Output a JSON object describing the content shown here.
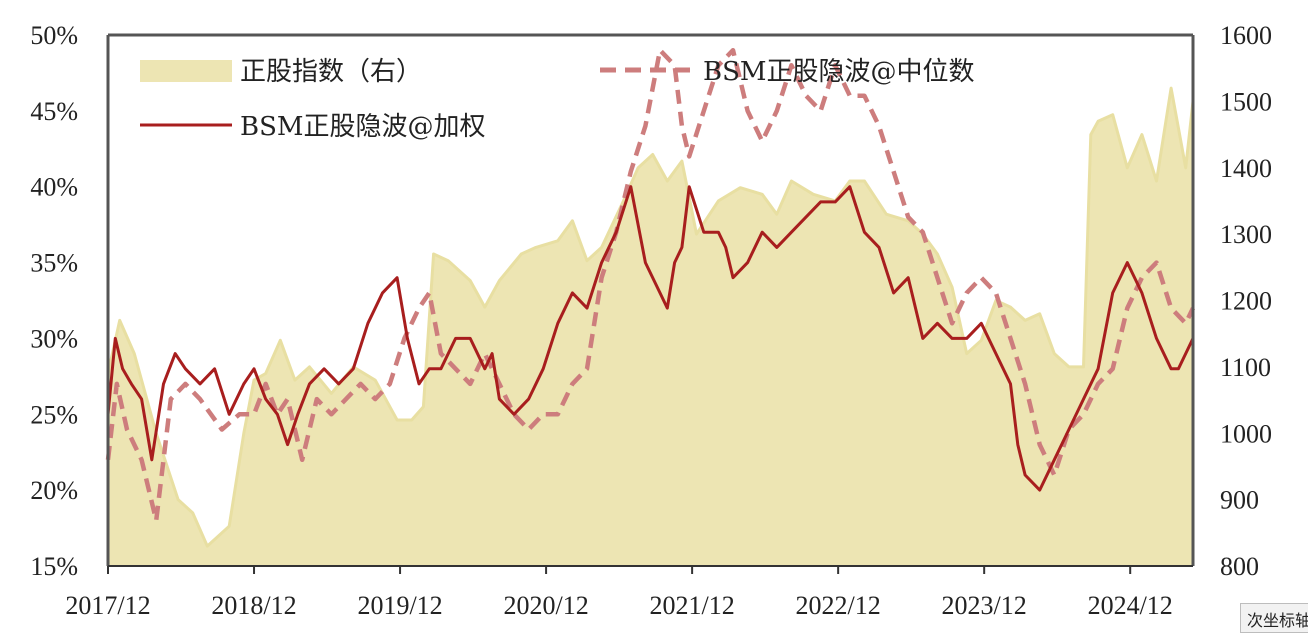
{
  "colors": {
    "index_fill": "#ede5b3",
    "index_line": "#e8dfa2",
    "weighted_line": "#a81e1e",
    "median_line": "#cd7d7d",
    "axis": "#555555"
  },
  "tooltip": "次坐标轴",
  "chart_data": {
    "type": "line",
    "title": "",
    "grid": false,
    "legend_position": "top",
    "x_ticks": [
      "2017/12",
      "2018/12",
      "2019/12",
      "2020/12",
      "2021/12",
      "2022/12",
      "2023/12",
      "2024/12"
    ],
    "x_range": [
      2017.92,
      2025.35
    ],
    "y_left": {
      "ticks": [
        "15%",
        "20%",
        "25%",
        "30%",
        "35%",
        "40%",
        "45%",
        "50%"
      ],
      "range": [
        15,
        50
      ],
      "unit": "%"
    },
    "y_right": {
      "ticks": [
        "800",
        "900",
        "1000",
        "1100",
        "1200",
        "1300",
        "1400",
        "1500",
        "1600"
      ],
      "range": [
        800,
        1600
      ]
    },
    "series": [
      {
        "name": "正股指数（右）",
        "axis": "right",
        "style": "area",
        "x": [
          2017.92,
          2018.0,
          2018.1,
          2018.25,
          2018.4,
          2018.5,
          2018.6,
          2018.75,
          2018.85,
          2018.92,
          2019.0,
          2019.1,
          2019.2,
          2019.3,
          2019.45,
          2019.6,
          2019.75,
          2019.9,
          2020.0,
          2020.08,
          2020.15,
          2020.25,
          2020.4,
          2020.5,
          2020.6,
          2020.75,
          2020.85,
          2021.0,
          2021.1,
          2021.2,
          2021.3,
          2021.45,
          2021.55,
          2021.65,
          2021.75,
          2021.85,
          2021.95,
          2022.1,
          2022.25,
          2022.4,
          2022.5,
          2022.6,
          2022.75,
          2022.9,
          2023.0,
          2023.1,
          2023.25,
          2023.4,
          2023.5,
          2023.6,
          2023.7,
          2023.8,
          2023.9,
          2024.0,
          2024.1,
          2024.2,
          2024.3,
          2024.4,
          2024.5,
          2024.6,
          2024.65,
          2024.7,
          2024.8,
          2024.9,
          2025.0,
          2025.1,
          2025.2,
          2025.3,
          2025.35
        ],
        "values": [
          1090,
          1170,
          1120,
          1000,
          900,
          880,
          830,
          860,
          1000,
          1080,
          1090,
          1140,
          1080,
          1100,
          1060,
          1100,
          1080,
          1020,
          1020,
          1040,
          1270,
          1260,
          1230,
          1190,
          1230,
          1270,
          1280,
          1290,
          1320,
          1260,
          1280,
          1350,
          1400,
          1420,
          1380,
          1410,
          1300,
          1350,
          1370,
          1360,
          1330,
          1380,
          1360,
          1350,
          1380,
          1380,
          1330,
          1320,
          1300,
          1270,
          1220,
          1120,
          1140,
          1200,
          1190,
          1170,
          1180,
          1120,
          1100,
          1100,
          1450,
          1470,
          1480,
          1400,
          1450,
          1380,
          1520,
          1400,
          1500
        ]
      },
      {
        "name": "BSM正股隐波@中位数",
        "axis": "left",
        "style": "dashed",
        "x": [
          2017.92,
          2017.98,
          2018.05,
          2018.15,
          2018.25,
          2018.35,
          2018.45,
          2018.55,
          2018.7,
          2018.82,
          2018.92,
          2019.0,
          2019.08,
          2019.15,
          2019.25,
          2019.35,
          2019.45,
          2019.55,
          2019.65,
          2019.75,
          2019.85,
          2019.95,
          2020.05,
          2020.12,
          2020.2,
          2020.3,
          2020.4,
          2020.5,
          2020.6,
          2020.7,
          2020.8,
          2020.9,
          2021.0,
          2021.05,
          2021.1,
          2021.2,
          2021.3,
          2021.4,
          2021.5,
          2021.6,
          2021.7,
          2021.8,
          2021.85,
          2021.9,
          2022.0,
          2022.1,
          2022.2,
          2022.3,
          2022.4,
          2022.5,
          2022.6,
          2022.7,
          2022.8,
          2022.9,
          2023.0,
          2023.1,
          2023.2,
          2023.3,
          2023.4,
          2023.5,
          2023.6,
          2023.7,
          2023.8,
          2023.9,
          2024.0,
          2024.1,
          2024.2,
          2024.3,
          2024.4,
          2024.5,
          2024.6,
          2024.7,
          2024.8,
          2024.9,
          2025.0,
          2025.1,
          2025.2,
          2025.3,
          2025.35
        ],
        "values": [
          22,
          27,
          24,
          22,
          18,
          26,
          27,
          26,
          24,
          25,
          25,
          27,
          25,
          26,
          22,
          26,
          25,
          26,
          27,
          26,
          27,
          30,
          32,
          33,
          29,
          28,
          27,
          29,
          27,
          25,
          24,
          25,
          25,
          26,
          27,
          28,
          34,
          37,
          41,
          44,
          49,
          48,
          44,
          42,
          45,
          48,
          49,
          45,
          43,
          45,
          48,
          46,
          45,
          48,
          46,
          46,
          44,
          41,
          38,
          37,
          34,
          31,
          33,
          34,
          33,
          30,
          27,
          23,
          21,
          24,
          25,
          27,
          28,
          32,
          34,
          35,
          32,
          31,
          32
        ]
      },
      {
        "name": "BSM正股隐波@加权",
        "axis": "left",
        "style": "solid",
        "x": [
          2017.92,
          2017.97,
          2018.02,
          2018.08,
          2018.15,
          2018.22,
          2018.3,
          2018.38,
          2018.45,
          2018.55,
          2018.65,
          2018.75,
          2018.85,
          2018.92,
          2019.0,
          2019.08,
          2019.15,
          2019.22,
          2019.3,
          2019.4,
          2019.5,
          2019.6,
          2019.7,
          2019.8,
          2019.9,
          2019.97,
          2020.05,
          2020.12,
          2020.2,
          2020.3,
          2020.4,
          2020.5,
          2020.55,
          2020.6,
          2020.7,
          2020.8,
          2020.9,
          2021.0,
          2021.1,
          2021.2,
          2021.3,
          2021.4,
          2021.5,
          2021.6,
          2021.7,
          2021.75,
          2021.8,
          2021.85,
          2021.9,
          2022.0,
          2022.1,
          2022.15,
          2022.2,
          2022.3,
          2022.4,
          2022.5,
          2022.6,
          2022.7,
          2022.8,
          2022.9,
          2023.0,
          2023.1,
          2023.2,
          2023.3,
          2023.4,
          2023.5,
          2023.6,
          2023.7,
          2023.8,
          2023.9,
          2024.0,
          2024.1,
          2024.15,
          2024.2,
          2024.3,
          2024.4,
          2024.5,
          2024.6,
          2024.7,
          2024.8,
          2024.9,
          2025.0,
          2025.1,
          2025.2,
          2025.25,
          2025.3,
          2025.35
        ],
        "values": [
          25,
          30,
          28,
          27,
          26,
          22,
          27,
          29,
          28,
          27,
          28,
          25,
          27,
          28,
          26,
          25,
          23,
          25,
          27,
          28,
          27,
          28,
          31,
          33,
          34,
          30,
          27,
          28,
          28,
          30,
          30,
          28,
          29,
          26,
          25,
          26,
          28,
          31,
          33,
          32,
          35,
          37,
          40,
          35,
          33,
          32,
          35,
          36,
          40,
          37,
          37,
          36,
          34,
          35,
          37,
          36,
          37,
          38,
          39,
          39,
          40,
          37,
          36,
          33,
          34,
          30,
          31,
          30,
          30,
          31,
          29,
          27,
          23,
          21,
          20,
          22,
          24,
          26,
          28,
          33,
          35,
          33,
          30,
          28,
          28,
          29,
          30
        ]
      }
    ]
  }
}
